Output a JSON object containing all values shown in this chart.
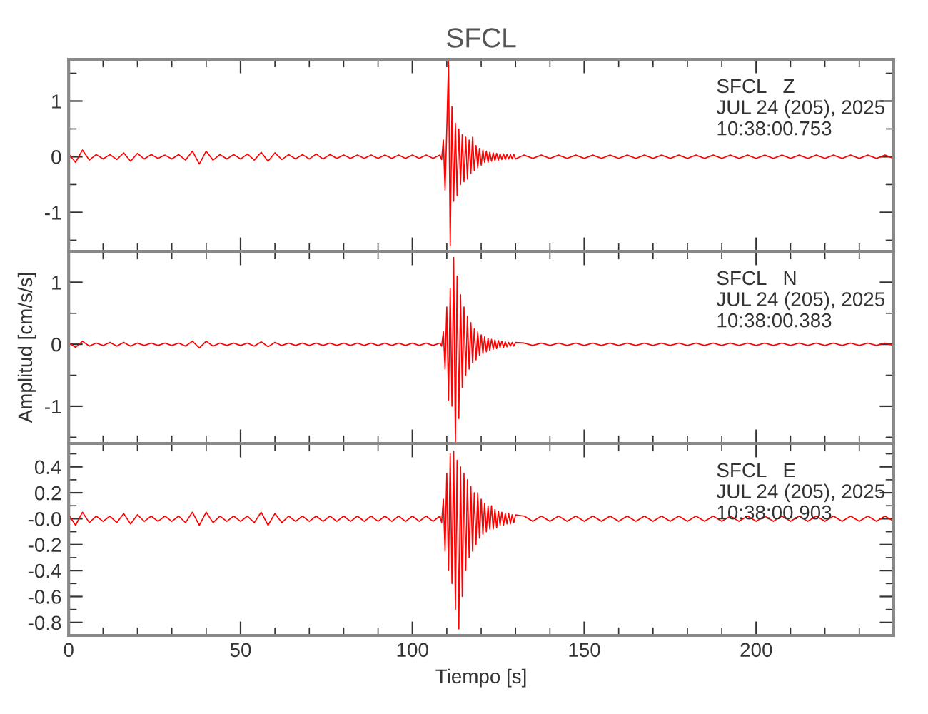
{
  "chart_data": [
    {
      "type": "line",
      "title": "SFCL",
      "annotations": [
        "SFCL   Z",
        "JUL 24 (205), 2025",
        "10:38:00.753"
      ],
      "xlim": [
        0,
        240
      ],
      "xticks": [
        0,
        50,
        100,
        150,
        200
      ],
      "ylim": [
        -1.7,
        1.75
      ],
      "yticks": [
        -1,
        0,
        1
      ],
      "tick_labels": "y",
      "grid": false,
      "legend": false,
      "x": [
        0,
        2,
        4,
        6,
        8,
        10,
        12,
        14,
        16,
        18,
        20,
        22,
        24,
        26,
        28,
        30,
        32,
        34,
        36,
        38,
        40,
        42,
        44,
        46,
        48,
        50,
        52,
        54,
        56,
        58,
        60,
        62,
        64,
        66,
        68,
        70,
        72,
        74,
        76,
        78,
        80,
        82,
        84,
        86,
        88,
        90,
        92,
        94,
        96,
        98,
        100,
        102,
        104,
        106,
        108,
        108.5,
        109,
        109.5,
        110,
        110.5,
        111,
        111.5,
        112,
        112.5,
        113,
        113.5,
        114,
        114.5,
        115,
        115.5,
        116,
        116.5,
        117,
        117.5,
        118,
        118.5,
        119,
        119.5,
        120,
        120.5,
        121,
        121.5,
        122,
        122.5,
        123,
        123.5,
        124,
        124.5,
        125,
        125.5,
        126,
        126.5,
        127,
        127.5,
        128,
        128.5,
        129,
        129.5,
        130,
        132.5,
        135,
        137.5,
        140,
        142.5,
        145,
        147.5,
        150,
        152.5,
        155,
        157.5,
        160,
        162.5,
        165,
        167.5,
        170,
        172.5,
        175,
        177.5,
        180,
        182.5,
        185,
        187.5,
        190,
        192.5,
        195,
        197.5,
        200,
        202.5,
        205,
        207.5,
        210,
        212.5,
        215,
        217.5,
        220,
        222.5,
        225,
        227.5,
        230,
        232.5,
        235,
        237.5,
        240
      ],
      "series": [
        {
          "color": "#ff0000",
          "values": [
            0.05,
            -0.1,
            0.12,
            -0.06,
            0.04,
            -0.04,
            0.04,
            -0.05,
            0.07,
            -0.08,
            0.06,
            -0.04,
            0.04,
            -0.03,
            0.03,
            -0.04,
            0.04,
            -0.06,
            0.1,
            -0.13,
            0.1,
            -0.06,
            0.04,
            -0.04,
            0.04,
            -0.04,
            0.05,
            -0.06,
            0.08,
            -0.08,
            0.07,
            -0.05,
            0.04,
            -0.04,
            0.04,
            -0.04,
            0.05,
            -0.04,
            0.04,
            -0.03,
            0.03,
            -0.03,
            0.03,
            -0.03,
            0.03,
            -0.03,
            0.03,
            -0.03,
            0.03,
            -0.03,
            0.03,
            -0.03,
            0.03,
            -0.03,
            0.03,
            -0.05,
            0.3,
            -0.6,
            0.5,
            1.7,
            -1.6,
            0.9,
            -0.8,
            0.6,
            -0.7,
            0.5,
            -0.5,
            0.4,
            -0.45,
            0.35,
            -0.4,
            0.3,
            -0.3,
            0.35,
            -0.25,
            0.2,
            -0.2,
            0.15,
            -0.15,
            0.12,
            -0.1,
            0.1,
            -0.1,
            0.08,
            -0.08,
            0.07,
            -0.07,
            0.06,
            -0.06,
            0.05,
            -0.05,
            0.05,
            -0.05,
            0.04,
            -0.04,
            0.04,
            -0.04,
            0.04,
            -0.04,
            0.03,
            -0.03,
            0.03,
            -0.03,
            0.03,
            -0.03,
            0.03,
            -0.03,
            0.03,
            -0.03,
            0.03,
            -0.03,
            0.03,
            -0.03,
            0.03,
            -0.03,
            0.03,
            -0.03,
            0.03,
            -0.03,
            0.03,
            -0.03,
            0.03,
            -0.03,
            0.03,
            -0.03,
            0.03,
            -0.03,
            0.03,
            -0.03,
            0.03,
            -0.03,
            0.03,
            -0.03,
            0.03,
            -0.03,
            0.03,
            -0.03,
            0.03,
            -0.03,
            0.03,
            -0.03,
            0.03,
            -0.03
          ]
        }
      ]
    },
    {
      "type": "line",
      "ylabel": "Amplitud [cm/s/s]",
      "annotations": [
        "SFCL   N",
        "JUL 24 (205), 2025",
        "10:38:00.383"
      ],
      "xlim": [
        0,
        240
      ],
      "xticks": [
        0,
        50,
        100,
        150,
        200
      ],
      "ylim": [
        -1.6,
        1.5
      ],
      "yticks": [
        -1,
        0,
        1
      ],
      "tick_labels": "y",
      "grid": false,
      "legend": false,
      "x": [
        0,
        2,
        4,
        6,
        8,
        10,
        12,
        14,
        16,
        18,
        20,
        22,
        24,
        26,
        28,
        30,
        32,
        34,
        36,
        38,
        40,
        42,
        44,
        46,
        48,
        50,
        52,
        54,
        56,
        58,
        60,
        62,
        64,
        66,
        68,
        70,
        72,
        74,
        76,
        78,
        80,
        82,
        84,
        86,
        88,
        90,
        92,
        94,
        96,
        98,
        100,
        102,
        104,
        106,
        108,
        108.5,
        109,
        109.5,
        110,
        110.5,
        111,
        111.5,
        112,
        112.5,
        113,
        113.5,
        114,
        114.5,
        115,
        115.5,
        116,
        116.5,
        117,
        117.5,
        118,
        118.5,
        119,
        119.5,
        120,
        120.5,
        121,
        121.5,
        122,
        122.5,
        123,
        123.5,
        124,
        124.5,
        125,
        125.5,
        126,
        126.5,
        127,
        127.5,
        128,
        128.5,
        129,
        129.5,
        130,
        132.5,
        135,
        137.5,
        140,
        142.5,
        145,
        147.5,
        150,
        152.5,
        155,
        157.5,
        160,
        162.5,
        165,
        167.5,
        170,
        172.5,
        175,
        177.5,
        180,
        182.5,
        185,
        187.5,
        190,
        192.5,
        195,
        197.5,
        200,
        202.5,
        205,
        207.5,
        210,
        212.5,
        215,
        217.5,
        220,
        222.5,
        225,
        227.5,
        230,
        232.5,
        235,
        237.5,
        240
      ],
      "series": [
        {
          "color": "#ff0000",
          "values": [
            0.03,
            -0.05,
            0.05,
            -0.03,
            0.02,
            -0.02,
            0.03,
            -0.03,
            0.03,
            -0.03,
            0.02,
            -0.02,
            0.02,
            -0.02,
            0.02,
            -0.02,
            0.02,
            -0.03,
            0.05,
            -0.06,
            0.05,
            -0.03,
            0.02,
            -0.02,
            0.02,
            -0.02,
            0.02,
            -0.03,
            0.04,
            -0.04,
            0.03,
            -0.02,
            0.02,
            -0.02,
            0.02,
            -0.02,
            0.02,
            -0.02,
            0.02,
            -0.02,
            0.02,
            -0.02,
            0.02,
            -0.02,
            0.02,
            -0.02,
            0.02,
            -0.02,
            0.02,
            -0.02,
            0.02,
            -0.02,
            0.02,
            -0.02,
            0.02,
            -0.03,
            0.2,
            -0.4,
            0.6,
            -0.9,
            0.9,
            -1.0,
            1.4,
            -1.6,
            1.1,
            -1.2,
            0.8,
            -0.7,
            0.6,
            -0.5,
            0.45,
            -0.4,
            0.35,
            -0.3,
            0.25,
            -0.25,
            0.2,
            -0.18,
            0.15,
            -0.15,
            0.12,
            -0.12,
            0.1,
            -0.1,
            0.08,
            -0.08,
            0.07,
            -0.07,
            0.06,
            -0.05,
            0.05,
            -0.05,
            0.04,
            -0.04,
            0.03,
            -0.03,
            0.03,
            -0.03,
            0.03,
            0.02,
            -0.02,
            0.02,
            -0.02,
            0.02,
            -0.02,
            0.02,
            -0.02,
            0.02,
            -0.02,
            0.02,
            -0.02,
            0.02,
            -0.02,
            0.02,
            -0.02,
            0.02,
            -0.02,
            0.02,
            -0.02,
            0.02,
            -0.02,
            0.02,
            -0.02,
            0.02,
            -0.02,
            0.02,
            -0.02,
            0.02,
            -0.02,
            0.02,
            -0.02,
            0.02,
            -0.02,
            0.02,
            -0.02,
            0.02,
            -0.02,
            0.02,
            -0.02,
            0.02,
            -0.02,
            0.02,
            -0.02
          ]
        }
      ]
    },
    {
      "type": "line",
      "xlabel": "Tiempo [s]",
      "annotations": [
        "SFCL   E",
        "JUL 24 (205), 2025",
        "10:38:00.903"
      ],
      "xlim": [
        0,
        240
      ],
      "xticks": [
        0,
        50,
        100,
        150,
        200
      ],
      "ylim": [
        -0.9,
        0.58
      ],
      "yticks": [
        -0.8,
        -0.6,
        -0.4,
        -0.2,
        {
          "value": 0,
          "label": "-0.0"
        },
        0.2,
        0.4
      ],
      "grid": false,
      "legend": false,
      "x": [
        0,
        2,
        4,
        6,
        8,
        10,
        12,
        14,
        16,
        18,
        20,
        22,
        24,
        26,
        28,
        30,
        32,
        34,
        36,
        38,
        40,
        42,
        44,
        46,
        48,
        50,
        52,
        54,
        56,
        58,
        60,
        62,
        64,
        66,
        68,
        70,
        72,
        74,
        76,
        78,
        80,
        82,
        84,
        86,
        88,
        90,
        92,
        94,
        96,
        98,
        100,
        102,
        104,
        106,
        108,
        108.5,
        109,
        109.5,
        110,
        110.5,
        111,
        111.5,
        112,
        112.5,
        113,
        113.5,
        114,
        114.5,
        115,
        115.5,
        116,
        116.5,
        117,
        117.5,
        118,
        118.5,
        119,
        119.5,
        120,
        120.5,
        121,
        121.5,
        122,
        122.5,
        123,
        123.5,
        124,
        124.5,
        125,
        125.5,
        126,
        126.5,
        127,
        127.5,
        128,
        128.5,
        129,
        129.5,
        130,
        132.5,
        135,
        137.5,
        140,
        142.5,
        145,
        147.5,
        150,
        152.5,
        155,
        157.5,
        160,
        162.5,
        165,
        167.5,
        170,
        172.5,
        175,
        177.5,
        180,
        182.5,
        185,
        187.5,
        190,
        192.5,
        195,
        197.5,
        200,
        202.5,
        205,
        207.5,
        210,
        212.5,
        215,
        217.5,
        220,
        222.5,
        225,
        227.5,
        230,
        232.5,
        235,
        237.5,
        240
      ],
      "series": [
        {
          "color": "#ff0000",
          "values": [
            0.03,
            -0.05,
            0.05,
            -0.03,
            0.02,
            -0.02,
            0.02,
            -0.03,
            0.04,
            -0.04,
            0.03,
            -0.02,
            0.02,
            -0.02,
            0.02,
            -0.02,
            0.02,
            -0.03,
            0.05,
            -0.05,
            0.05,
            -0.03,
            0.02,
            -0.02,
            0.02,
            -0.02,
            0.02,
            -0.03,
            0.05,
            -0.05,
            0.04,
            -0.03,
            0.02,
            -0.02,
            0.02,
            -0.02,
            0.02,
            -0.02,
            0.02,
            -0.02,
            0.02,
            -0.02,
            0.02,
            -0.02,
            0.02,
            -0.02,
            0.02,
            -0.02,
            0.02,
            -0.02,
            0.02,
            -0.02,
            0.02,
            -0.02,
            0.02,
            -0.03,
            0.15,
            -0.25,
            0.35,
            -0.4,
            0.5,
            -0.5,
            0.52,
            -0.7,
            0.45,
            -0.85,
            0.4,
            -0.6,
            0.35,
            -0.4,
            0.3,
            -0.3,
            0.25,
            -0.25,
            0.2,
            -0.2,
            0.2,
            -0.15,
            0.15,
            -0.12,
            0.12,
            -0.1,
            0.1,
            -0.08,
            0.1,
            -0.08,
            0.07,
            -0.07,
            0.06,
            -0.05,
            0.05,
            -0.05,
            0.04,
            -0.04,
            0.04,
            -0.04,
            0.03,
            -0.03,
            0.03,
            0.02,
            -0.02,
            0.02,
            -0.02,
            0.02,
            -0.02,
            0.02,
            -0.02,
            0.02,
            -0.02,
            0.02,
            -0.02,
            0.02,
            -0.02,
            0.02,
            -0.02,
            0.02,
            -0.02,
            0.02,
            -0.02,
            0.02,
            -0.02,
            0.02,
            -0.02,
            0.02,
            -0.02,
            0.02,
            -0.02,
            0.02,
            -0.02,
            0.02,
            -0.02,
            0.02,
            -0.02,
            0.02,
            -0.02,
            0.02,
            -0.02,
            0.02,
            -0.02,
            0.02,
            -0.02,
            0.02,
            -0.02
          ]
        }
      ]
    }
  ]
}
